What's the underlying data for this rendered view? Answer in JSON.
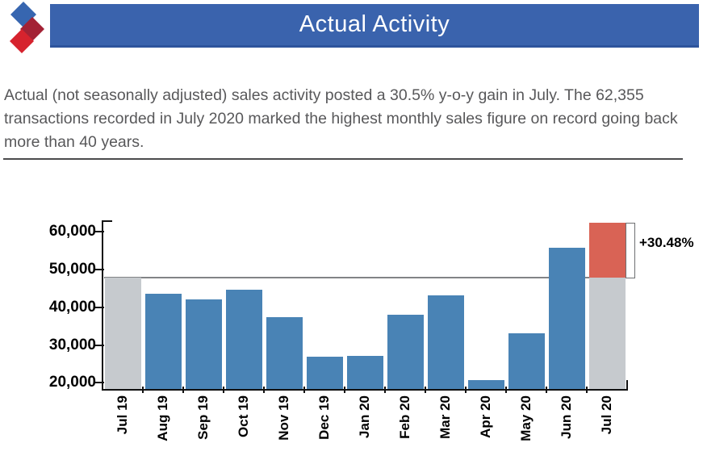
{
  "header": {
    "title": "Actual Activity"
  },
  "summary": "Actual (not seasonally adjusted) sales activity posted a 30.5% y-o-y gain in July. The 62,355 transactions recorded in July 2020 marked the highest monthly sales figure on record going back more than 40 years.",
  "colors": {
    "banner_blue": "#3a63ad",
    "logo_blue": "#3766b0",
    "logo_crimson": "#a32235",
    "logo_red": "#d6232e",
    "bar_blue": "#4983b5",
    "bar_gray": "#c6cace",
    "bar_red": "#d96355",
    "reference_line_gray": "#828486",
    "axis_black": "#111111",
    "body_text_gray": "#58585a"
  },
  "chart_data": {
    "type": "bar",
    "title": "",
    "xlabel": "",
    "ylabel": "",
    "categories": [
      "Jul 19",
      "Aug 19",
      "Sep 19",
      "Oct 19",
      "Nov 19",
      "Dec 19",
      "Jan 20",
      "Feb 20",
      "Mar 20",
      "Apr 20",
      "May 20",
      "Jun 20",
      "Jul 20"
    ],
    "values": [
      47789,
      43500,
      42000,
      44500,
      37400,
      27000,
      27200,
      38000,
      43000,
      20700,
      33100,
      55600,
      62355
    ],
    "bar_roles": [
      "baseline",
      "normal",
      "normal",
      "normal",
      "normal",
      "normal",
      "normal",
      "normal",
      "normal",
      "normal",
      "normal",
      "normal",
      "highlight"
    ],
    "highlight_note": "Jul 20 bar drawn gray below the Jul 19 reference level and red above it",
    "y_ticks": [
      20000,
      30000,
      40000,
      50000,
      60000
    ],
    "y_tick_labels": [
      "20,000",
      "30,000",
      "40,000",
      "50,000",
      "60,000"
    ],
    "ylim": [
      18400,
      62900
    ],
    "grid": false,
    "legend": false,
    "reference_value": 47789,
    "annotation_label": "+30.48%"
  }
}
